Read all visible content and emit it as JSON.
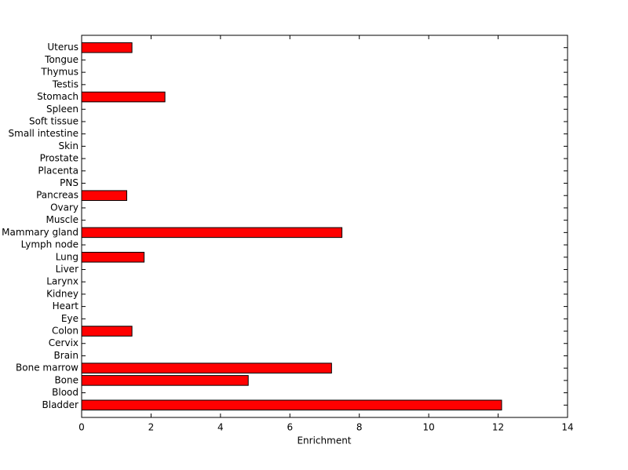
{
  "chart_data": {
    "type": "barh",
    "xlabel": "Enrichment",
    "categories": [
      "Bladder",
      "Blood",
      "Bone",
      "Bone marrow",
      "Brain",
      "Cervix",
      "Colon",
      "Eye",
      "Heart",
      "Kidney",
      "Larynx",
      "Liver",
      "Lung",
      "Lymph node",
      "Mammary gland",
      "Muscle",
      "Ovary",
      "Pancreas",
      "PNS",
      "Placenta",
      "Prostate",
      "Skin",
      "Small intestine",
      "Soft tissue",
      "Spleen",
      "Stomach",
      "Testis",
      "Thymus",
      "Tongue",
      "Uterus"
    ],
    "values": [
      12.1,
      0,
      4.8,
      7.2,
      0,
      0,
      1.45,
      0,
      0,
      0,
      0,
      0,
      1.8,
      0,
      7.5,
      0,
      0,
      1.3,
      0,
      0,
      0,
      0,
      0,
      0,
      0,
      2.4,
      0,
      0,
      0,
      1.45
    ],
    "color": "#ff0000",
    "xlim": [
      0,
      14
    ],
    "xticks": [
      0,
      2,
      4,
      6,
      8,
      10,
      12,
      14
    ]
  }
}
